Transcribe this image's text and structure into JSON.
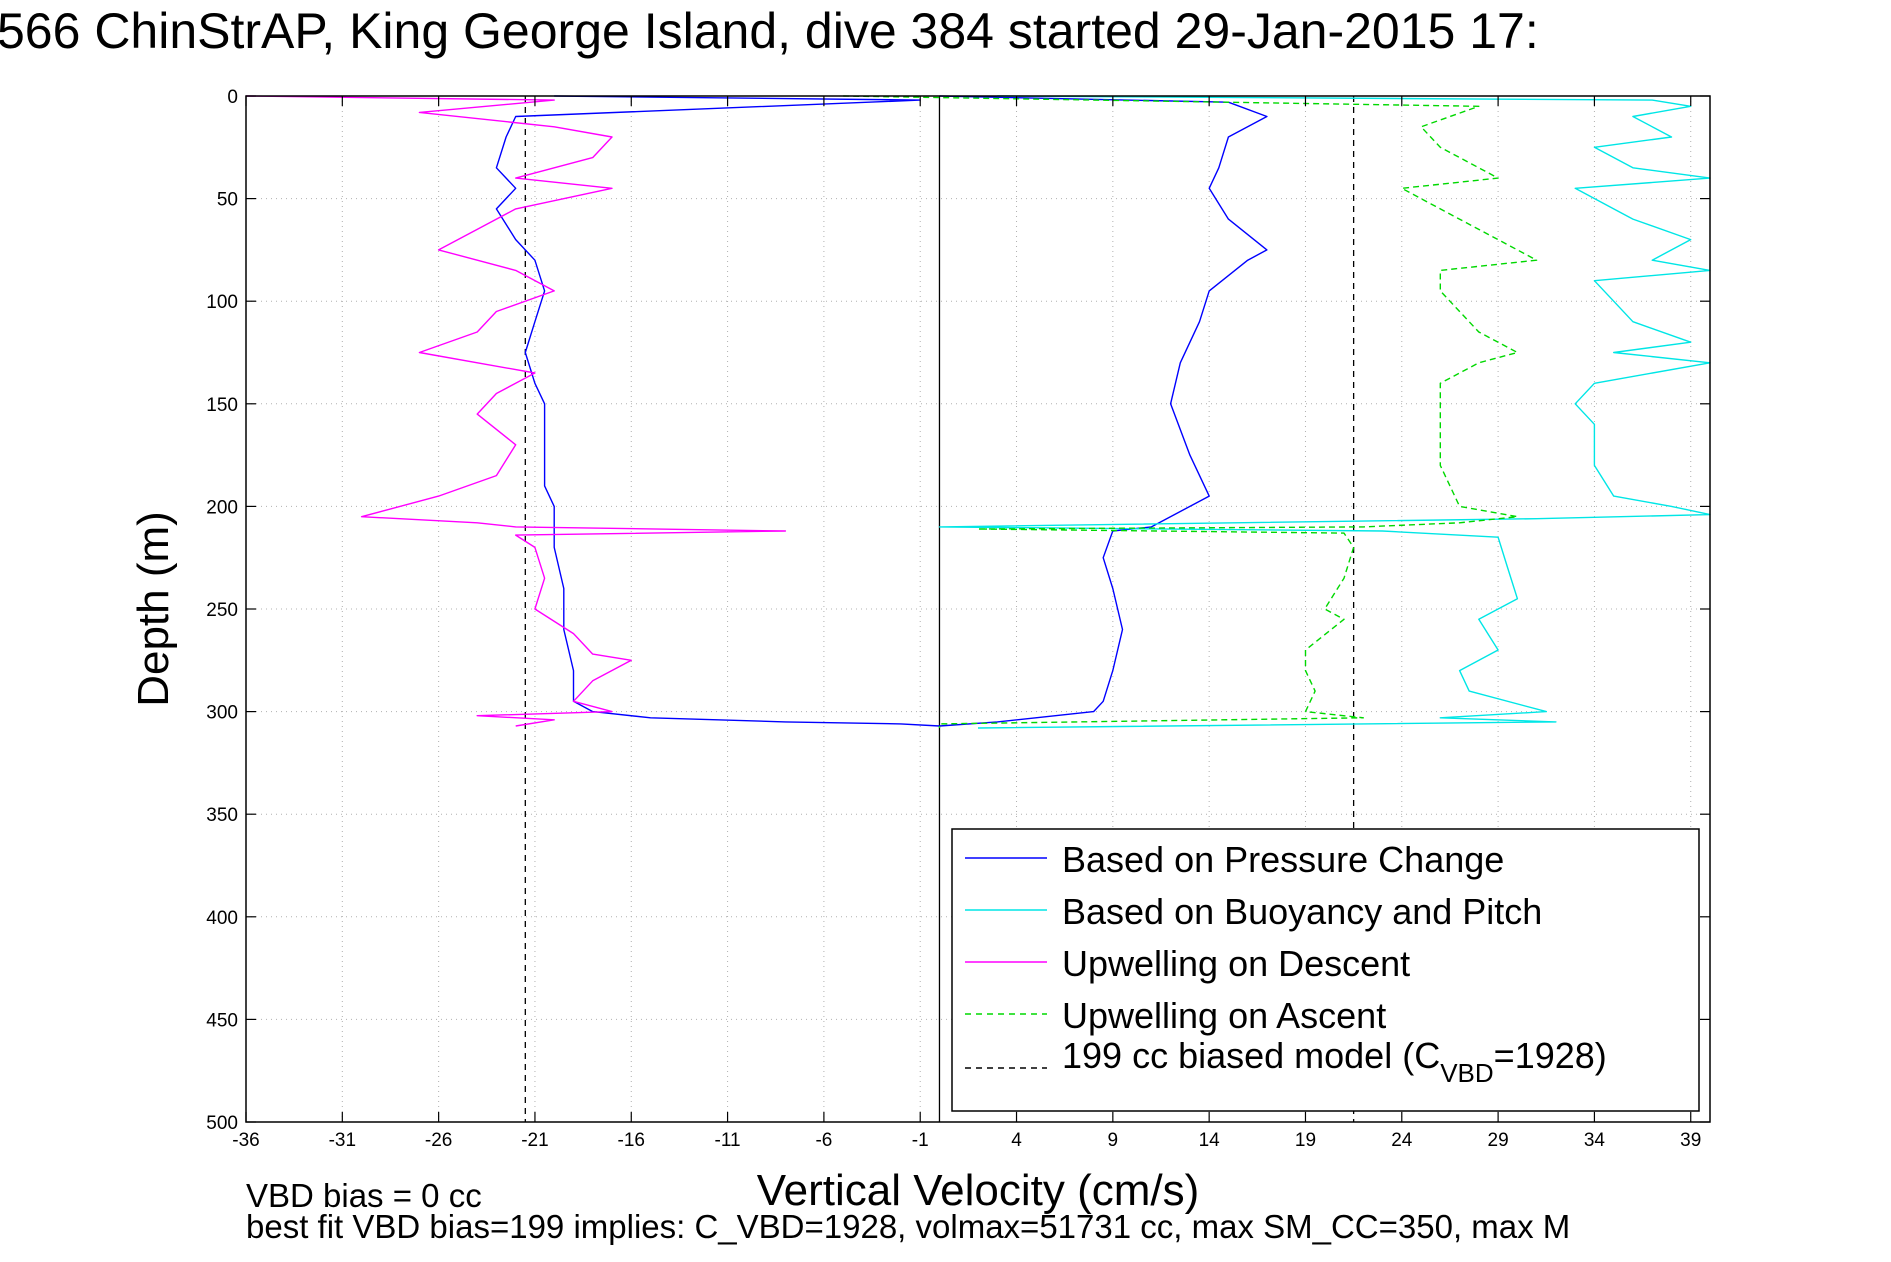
{
  "colors": {
    "pressure": "#0000ff",
    "buoyancy": "#00e6e6",
    "descent": "#ff00ff",
    "ascent": "#00d800",
    "model": "#000000"
  },
  "chart_data": {
    "type": "line",
    "title": "566 ChinStrAP, King George Island, dive 384 started 29-Jan-2015 17:",
    "xlabel": "Vertical Velocity (cm/s)",
    "ylabel": "Depth (m)",
    "xlim": [
      -36,
      40
    ],
    "ylim": [
      500,
      0
    ],
    "x_ticks": [
      -36,
      -31,
      -26,
      -21,
      -16,
      -11,
      -6,
      -1,
      4,
      9,
      14,
      19,
      24,
      29,
      34,
      39
    ],
    "y_ticks": [
      0,
      50,
      100,
      150,
      200,
      250,
      300,
      350,
      400,
      450,
      500
    ],
    "grid": true,
    "legend_position": "bottom-right",
    "footnote_1": "VBD bias = 0 cc",
    "footnote_2": "best fit VBD bias=199 implies: C_VBD=1928, volmax=51731 cc, max SM_CC=350, max M",
    "reference_lines": [
      {
        "name": "zero velocity",
        "x": 0,
        "style": "solid"
      },
      {
        "name": "-21.5 model",
        "x": -21.5,
        "style": "dashed"
      },
      {
        "name": "21.5 model",
        "x": 21.5,
        "style": "dashed"
      }
    ],
    "series": [
      {
        "key": "pressure",
        "name": "Based on Pressure Change",
        "style": "solid",
        "depths": [
          0,
          2,
          10,
          20,
          35,
          45,
          55,
          70,
          80,
          95,
          110,
          125,
          140,
          150,
          170,
          190,
          200,
          207,
          210,
          220,
          240,
          260,
          280,
          295,
          300,
          303,
          305,
          306,
          307,
          305,
          303,
          300,
          295,
          280,
          260,
          240,
          225,
          212,
          210,
          195,
          175,
          150,
          130,
          110,
          95,
          80,
          75,
          60,
          45,
          35,
          20,
          10,
          3,
          0
        ],
        "values": [
          -20,
          -1,
          -22,
          -22.5,
          -23,
          -22,
          -23,
          -22,
          -21,
          -20.5,
          -21,
          -21.5,
          -21,
          -20.5,
          -20.5,
          -20.5,
          -20,
          -20,
          -20,
          -20,
          -19.5,
          -19.5,
          -19,
          -19,
          -18,
          -15,
          -8,
          -2,
          0,
          3,
          5,
          8,
          8.5,
          9,
          9.5,
          9,
          8.5,
          9,
          11,
          14,
          13,
          12,
          12.5,
          13.5,
          14,
          16,
          17,
          15,
          14,
          14.5,
          15,
          17,
          15,
          0
        ]
      },
      {
        "key": "buoyancy",
        "name": "Based on Buoyancy and Pitch",
        "style": "solid",
        "depths": [
          0,
          2,
          5,
          10,
          20,
          25,
          35,
          40,
          45,
          55,
          60,
          70,
          80,
          85,
          90,
          100,
          110,
          120,
          125,
          130,
          140,
          150,
          160,
          180,
          195,
          200,
          204,
          206,
          210,
          212,
          215,
          230,
          245,
          255,
          270,
          280,
          290,
          300,
          303,
          305,
          308
        ],
        "values": [
          3,
          37,
          39,
          36,
          38,
          34,
          36,
          40,
          33,
          35,
          36,
          39,
          37,
          40,
          34,
          35,
          36,
          39,
          35,
          40,
          34,
          33,
          34,
          34,
          35,
          38,
          40,
          31,
          0,
          23,
          29,
          29.5,
          30,
          28,
          29,
          27,
          27.5,
          31.5,
          26,
          32,
          2
        ]
      },
      {
        "key": "descent",
        "name": "Upwelling on Descent",
        "style": "solid",
        "depths": [
          0,
          2,
          8,
          15,
          20,
          30,
          40,
          45,
          55,
          65,
          75,
          85,
          95,
          105,
          115,
          125,
          135,
          145,
          155,
          170,
          185,
          195,
          205,
          208,
          210,
          212,
          214,
          220,
          235,
          250,
          262,
          272,
          275,
          285,
          295,
          300,
          302,
          304,
          307
        ],
        "values": [
          -36,
          -20,
          -27,
          -20,
          -17,
          -18,
          -22,
          -17,
          -22,
          -24,
          -26,
          -22,
          -20,
          -23,
          -24,
          -27,
          -21,
          -23,
          -24,
          -22,
          -23,
          -26,
          -30,
          -24,
          -22,
          -8,
          -22,
          -21,
          -20.5,
          -21,
          -19,
          -18,
          -16,
          -18,
          -19,
          -17,
          -24,
          -20,
          -22
        ]
      },
      {
        "key": "ascent",
        "name": "Upwelling on Ascent",
        "style": "dashed",
        "depths": [
          0,
          5,
          15,
          25,
          35,
          40,
          45,
          55,
          65,
          75,
          80,
          85,
          95,
          105,
          115,
          125,
          130,
          140,
          160,
          180,
          200,
          205,
          208,
          210,
          211,
          213,
          220,
          235,
          250,
          255,
          270,
          280,
          290,
          300,
          303,
          306,
          308
        ],
        "values": [
          -5,
          28,
          25,
          26,
          28,
          29,
          24,
          26,
          28,
          30,
          31,
          26,
          26,
          27,
          28,
          30,
          28,
          26,
          26,
          26,
          27,
          30,
          27,
          22,
          2,
          21,
          21.5,
          21,
          20,
          21,
          19,
          19,
          19.5,
          19,
          22,
          0,
          0
        ]
      },
      {
        "key": "model",
        "name": "199 cc biased model (CVBD=1928)",
        "legend_base": "199 cc biased model (C",
        "legend_sub": "VBD",
        "legend_tail": "=1928)",
        "style": "dashed",
        "depths": [
          0,
          500
        ],
        "values": [
          -21.5,
          -21.5
        ]
      }
    ]
  }
}
